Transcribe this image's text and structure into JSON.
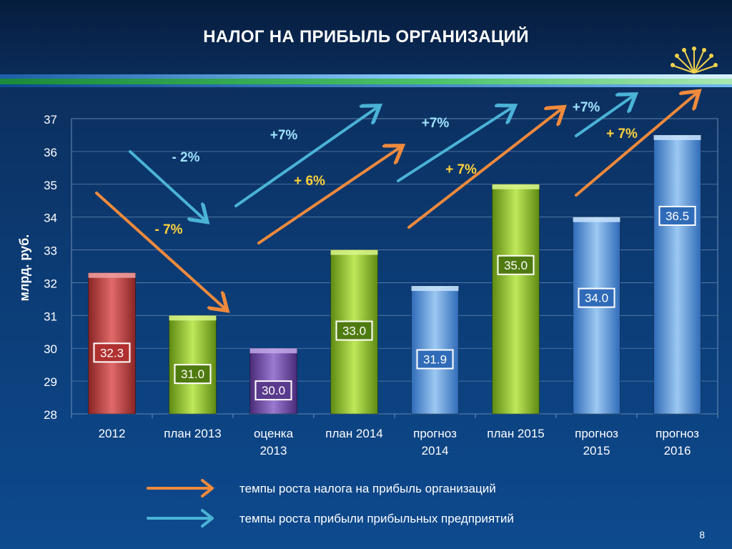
{
  "slide": {
    "title": "НАЛОГ НА ПРИБЫЛЬ ОРГАНИЗАЦИЙ",
    "page_number": "8",
    "legend": [
      {
        "label": "темпы роста налога на прибыль организаций",
        "color": "#f08a3c"
      },
      {
        "label": "темпы роста прибыли прибыльных предприятий",
        "color": "#4ab3d6"
      }
    ]
  },
  "chart_data": {
    "type": "bar",
    "ylabel": "млрд. руб.",
    "ylim": [
      28,
      37
    ],
    "yticks": [
      28,
      29,
      30,
      31,
      32,
      33,
      34,
      35,
      36,
      37
    ],
    "categories": [
      [
        "2012"
      ],
      [
        "план 2013"
      ],
      [
        "оценка",
        "2013"
      ],
      [
        "план 2014"
      ],
      [
        "прогноз",
        "2014"
      ],
      [
        "план 2015"
      ],
      [
        "прогноз",
        "2015"
      ],
      [
        "прогноз",
        "2016"
      ]
    ],
    "values": [
      32.3,
      31.0,
      30.0,
      33.0,
      31.9,
      35.0,
      34.0,
      36.5
    ],
    "value_labels": [
      "32.3",
      "31.0",
      "30.0",
      "33.0",
      "31.9",
      "35.0",
      "34.0",
      "36.5"
    ],
    "bar_colors": [
      "red",
      "green",
      "purple",
      "green",
      "blue",
      "green",
      "blue",
      "blue"
    ],
    "annotations": [
      {
        "text": "- 7%",
        "series": "tax"
      },
      {
        "text": "- 2%",
        "series": "profit"
      },
      {
        "text": "+ 6%",
        "series": "tax"
      },
      {
        "text": "+7%",
        "series": "profit"
      },
      {
        "text": "+ 7%",
        "series": "tax"
      },
      {
        "text": "+7%",
        "series": "profit"
      },
      {
        "text": "+ 7%",
        "series": "tax"
      },
      {
        "text": "+7%",
        "series": "profit"
      }
    ],
    "colors": {
      "tax_arrow": "#f08a3c",
      "profit_arrow": "#4ab3d6",
      "tax_text": "#ffd23a",
      "profit_text": "#9fe3ff"
    }
  }
}
